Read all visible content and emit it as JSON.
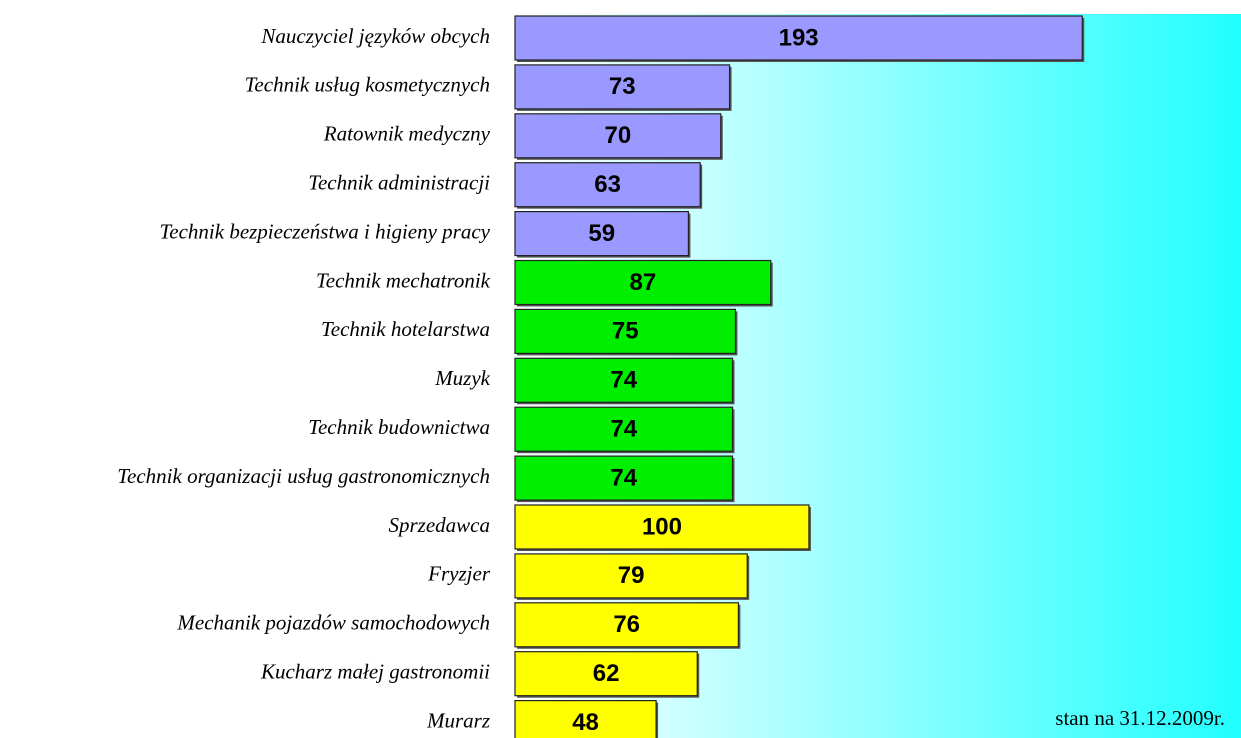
{
  "chart_data": {
    "type": "barh",
    "categories": [
      "Nauczyciel języków obcych",
      "Technik usług kosmetycznych",
      "Ratownik medyczny",
      "Technik administracji",
      "Technik bezpieczeństwa i higieny pracy",
      "Technik mechatronik",
      "Technik hotelarstwa",
      "Muzyk",
      "Technik budownictwa",
      "Technik organizacji usług gastronomicznych",
      "Sprzedawca",
      "Fryzjer",
      "Mechanik pojazdów samochodowych",
      "Kucharz małej gastronomii",
      "Murarz"
    ],
    "values": [
      193,
      73,
      70,
      63,
      59,
      87,
      75,
      74,
      74,
      74,
      100,
      79,
      76,
      62,
      48
    ],
    "colors": [
      "#9999ff",
      "#9999ff",
      "#9999ff",
      "#9999ff",
      "#9999ff",
      "#00ee00",
      "#00ee00",
      "#00ee00",
      "#00ee00",
      "#00ee00",
      "#ffff00",
      "#ffff00",
      "#ffff00",
      "#ffff00",
      "#ffff00"
    ],
    "xlim": [
      0,
      247
    ],
    "annotation": "stan na 31.12.2009r."
  }
}
